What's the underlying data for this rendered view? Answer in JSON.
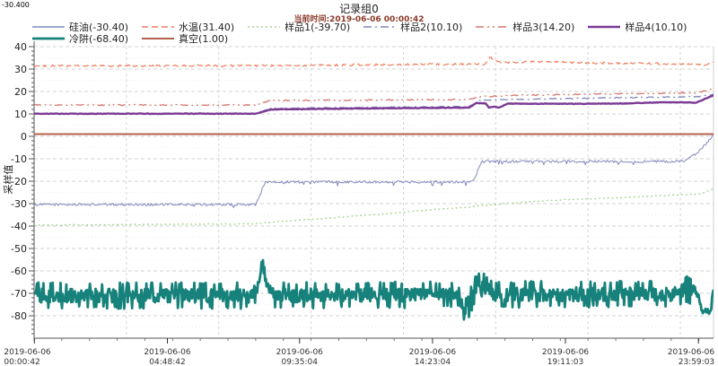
{
  "corner_value": "-30.400",
  "header": {
    "title": "记录组0",
    "subtitle": "当前时间:2019-06-06  00:00:42"
  },
  "chart_data": {
    "type": "line",
    "title": "记录组0",
    "ylabel": "采样值",
    "ylim": [
      -80,
      40
    ],
    "y_axis_bottom_value": -90,
    "y_major_step": 10,
    "y_minor_step": 2,
    "xlim_hours": [
      0,
      24.53
    ],
    "x_major_tick_hours": [
      0.012,
      4.812,
      9.584,
      14.385,
      19.184,
      23.984
    ],
    "x_minor_tick_step_hours": 1,
    "v_gridline_hours": [
      3.333,
      6.667,
      10.0,
      13.333,
      16.667,
      20.0,
      23.333
    ],
    "grid": true,
    "legend_position": "top",
    "xtick_labels": [
      [
        "2019-06-06",
        "00:00:42"
      ],
      [
        "2019-06-06",
        "04:48:42"
      ],
      [
        "2019-06-06",
        "09:35:04"
      ],
      [
        "2019-06-06",
        "14:23:04"
      ],
      [
        "2019-06-06",
        "19:11:03"
      ],
      [
        "2019-06-06",
        "23:59:03"
      ]
    ],
    "legend_rows": [
      [
        0,
        1,
        2,
        3,
        4,
        5
      ],
      [
        6,
        7
      ]
    ],
    "series": [
      {
        "name": "硅油",
        "label": "硅油(-30.40)",
        "current_value": -30.4,
        "color": "#8288bd",
        "style": "solid",
        "width": 1,
        "noise": 0.55,
        "dip_spikes": true,
        "points": [
          [
            0,
            -30.4
          ],
          [
            8.0,
            -30.4
          ],
          [
            8.35,
            -20.3
          ],
          [
            15.78,
            -20.3
          ],
          [
            15.88,
            -19.4
          ],
          [
            16.15,
            -11.2
          ],
          [
            23.45,
            -11.2
          ],
          [
            24.0,
            -7.0
          ],
          [
            24.53,
            0.8
          ]
        ]
      },
      {
        "name": "水温",
        "label": "水温(31.40)",
        "current_value": 31.4,
        "color": "#ef7e5e",
        "style": "dash",
        "width": 1.2,
        "noise": 0.45,
        "points": [
          [
            0,
            31.4
          ],
          [
            8,
            31.5
          ],
          [
            12,
            31.9
          ],
          [
            15,
            32.2
          ],
          [
            16.3,
            32.2
          ],
          [
            16.45,
            35.3
          ],
          [
            16.8,
            33.0
          ],
          [
            18.5,
            33.3
          ],
          [
            20,
            32.7
          ],
          [
            22,
            32.5
          ],
          [
            23.8,
            32.2
          ],
          [
            24.2,
            31.8
          ],
          [
            24.53,
            33.3
          ]
        ]
      },
      {
        "name": "样品1",
        "label": "样品1(-39.70)",
        "current_value": -39.7,
        "color": "#a8d18e",
        "style": "dot",
        "width": 1.3,
        "noise": 0.15,
        "points": [
          [
            0,
            -39.6
          ],
          [
            8.0,
            -39.0
          ],
          [
            8.6,
            -38.2
          ],
          [
            10.5,
            -36.6
          ],
          [
            12.4,
            -34.8
          ],
          [
            14.5,
            -32.6
          ],
          [
            15.8,
            -31.4
          ],
          [
            16.3,
            -30.7
          ],
          [
            18.5,
            -28.6
          ],
          [
            21.4,
            -27.2
          ],
          [
            23.0,
            -26.2
          ],
          [
            24.1,
            -25.7
          ],
          [
            24.53,
            -23.2
          ]
        ]
      },
      {
        "name": "样品2",
        "label": "样品2(10.10)",
        "current_value": 10.1,
        "color": "#7f8abc",
        "style": "dashdot",
        "width": 1.3,
        "noise": 0.2,
        "points": [
          [
            0,
            10.1
          ],
          [
            8.0,
            10.1
          ],
          [
            8.5,
            12.4
          ],
          [
            12.4,
            13.0
          ],
          [
            15.7,
            13.3
          ],
          [
            16.1,
            16.1
          ],
          [
            17.5,
            16.5
          ],
          [
            19.5,
            16.9
          ],
          [
            21.5,
            17.3
          ],
          [
            23.0,
            17.5
          ],
          [
            24.0,
            17.7
          ],
          [
            24.53,
            18.7
          ]
        ]
      },
      {
        "name": "样品3",
        "label": "样品3(14.20)",
        "current_value": 14.2,
        "color": "#d5776d",
        "style": "dashdotdot",
        "width": 1.3,
        "noise": 0.25,
        "points": [
          [
            0,
            14.0
          ],
          [
            8.0,
            14.0
          ],
          [
            8.5,
            16.0
          ],
          [
            12.4,
            16.2
          ],
          [
            15.7,
            16.4
          ],
          [
            16.1,
            17.7
          ],
          [
            17.5,
            18.3
          ],
          [
            19.5,
            18.7
          ],
          [
            21.5,
            19.0
          ],
          [
            23.0,
            19.2
          ],
          [
            24.0,
            19.5
          ],
          [
            24.53,
            21.3
          ]
        ]
      },
      {
        "name": "样品4",
        "label": "样品4(10.10)",
        "current_value": 10.1,
        "color": "#7c3a94",
        "style": "solid",
        "width": 2.4,
        "noise": 0.12,
        "points": [
          [
            0,
            10.1
          ],
          [
            8.0,
            10.1
          ],
          [
            8.55,
            12.0
          ],
          [
            12.4,
            12.5
          ],
          [
            15.7,
            12.8
          ],
          [
            15.95,
            14.8
          ],
          [
            16.3,
            14.7
          ],
          [
            16.42,
            12.9
          ],
          [
            16.65,
            13.3
          ],
          [
            16.78,
            12.8
          ],
          [
            17.1,
            14.6
          ],
          [
            19.5,
            14.5
          ],
          [
            21.5,
            14.7
          ],
          [
            22.3,
            15.1
          ],
          [
            23.6,
            15.2
          ],
          [
            23.9,
            15.0
          ],
          [
            24.53,
            18.4
          ]
        ]
      },
      {
        "name": "冷阱",
        "label": "冷阱(-68.40)",
        "current_value": -68.4,
        "color": "#17827b",
        "style": "solid",
        "width": 2.8,
        "noise": 3.8,
        "spiky": true,
        "calm_after": 23.9,
        "points": [
          [
            0,
            -71
          ],
          [
            7.9,
            -71
          ],
          [
            8.1,
            -66
          ],
          [
            8.23,
            -56.5
          ],
          [
            8.45,
            -67
          ],
          [
            8.7,
            -71
          ],
          [
            15.2,
            -70.5
          ],
          [
            15.45,
            -75
          ],
          [
            15.62,
            -78.5
          ],
          [
            15.8,
            -72
          ],
          [
            16.05,
            -63.5
          ],
          [
            16.3,
            -68
          ],
          [
            16.6,
            -70.5
          ],
          [
            23.2,
            -70.3
          ],
          [
            23.5,
            -68
          ],
          [
            23.95,
            -70
          ],
          [
            24.1,
            -78.5
          ],
          [
            24.3,
            -76.5
          ],
          [
            24.42,
            -78
          ],
          [
            24.53,
            -69
          ]
        ]
      },
      {
        "name": "真空",
        "label": "真空(1.00)",
        "current_value": 1.0,
        "color": "#b2604b",
        "style": "solid",
        "width": 2,
        "noise": 0,
        "points": [
          [
            0,
            1.0
          ],
          [
            24.53,
            1.0
          ]
        ]
      }
    ]
  }
}
